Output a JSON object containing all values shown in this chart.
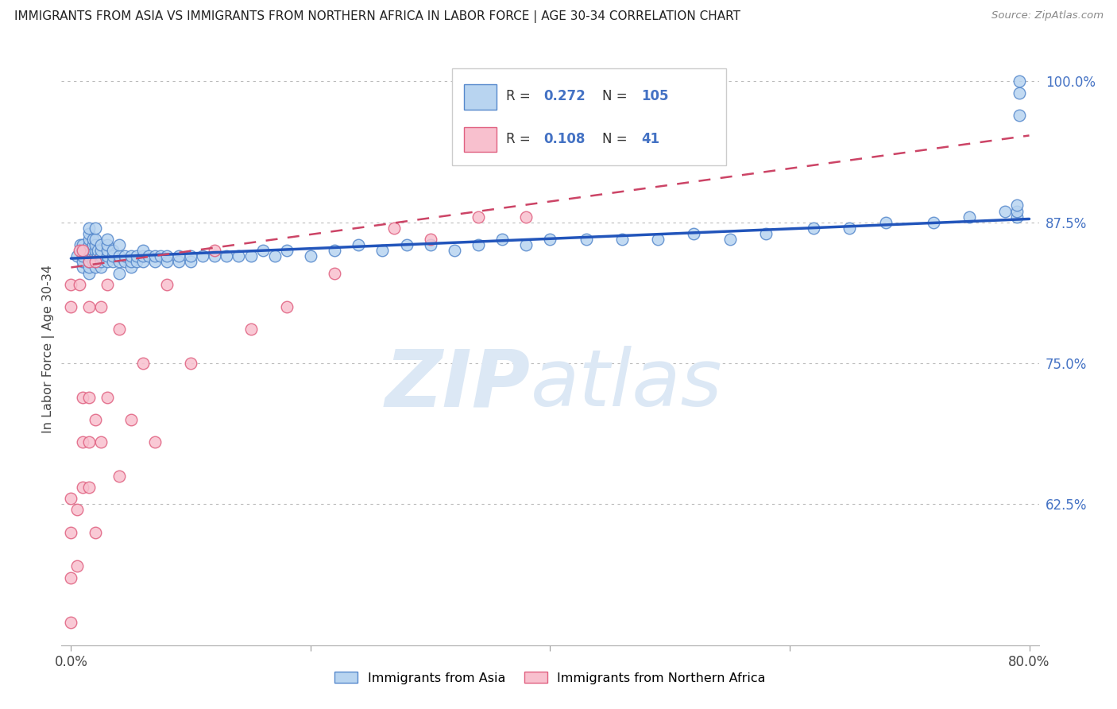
{
  "title": "IMMIGRANTS FROM ASIA VS IMMIGRANTS FROM NORTHERN AFRICA IN LABOR FORCE | AGE 30-34 CORRELATION CHART",
  "source": "Source: ZipAtlas.com",
  "ylabel": "In Labor Force | Age 30-34",
  "legend_label_asia": "Immigrants from Asia",
  "legend_label_africa": "Immigrants from Northern Africa",
  "R_asia": 0.272,
  "N_asia": 105,
  "R_africa": 0.108,
  "N_africa": 41,
  "xlim": [
    -0.008,
    0.808
  ],
  "ylim": [
    0.5,
    1.025
  ],
  "yticks": [
    0.625,
    0.75,
    0.875,
    1.0
  ],
  "ytick_labels": [
    "62.5%",
    "75.0%",
    "87.5%",
    "100.0%"
  ],
  "xticks": [
    0.0,
    0.2,
    0.4,
    0.6,
    0.8
  ],
  "xtick_labels": [
    "0.0%",
    "",
    "",
    "",
    "80.0%"
  ],
  "color_asia_fill": "#b8d4f0",
  "color_asia_edge": "#5588cc",
  "color_africa_fill": "#f8c0ce",
  "color_africa_edge": "#e06080",
  "color_trend_asia": "#2255bb",
  "color_trend_africa": "#cc4466",
  "watermark_color": "#dce8f5",
  "asia_x": [
    0.005,
    0.008,
    0.01,
    0.01,
    0.01,
    0.01,
    0.01,
    0.015,
    0.015,
    0.015,
    0.015,
    0.015,
    0.015,
    0.015,
    0.015,
    0.015,
    0.018,
    0.018,
    0.018,
    0.018,
    0.018,
    0.02,
    0.02,
    0.02,
    0.02,
    0.02,
    0.02,
    0.02,
    0.022,
    0.022,
    0.022,
    0.025,
    0.025,
    0.025,
    0.025,
    0.025,
    0.03,
    0.03,
    0.03,
    0.03,
    0.03,
    0.035,
    0.035,
    0.035,
    0.04,
    0.04,
    0.04,
    0.04,
    0.045,
    0.045,
    0.05,
    0.05,
    0.05,
    0.055,
    0.055,
    0.06,
    0.06,
    0.06,
    0.065,
    0.07,
    0.07,
    0.075,
    0.08,
    0.08,
    0.09,
    0.09,
    0.1,
    0.1,
    0.11,
    0.12,
    0.13,
    0.14,
    0.15,
    0.16,
    0.17,
    0.18,
    0.2,
    0.22,
    0.24,
    0.26,
    0.28,
    0.3,
    0.32,
    0.34,
    0.36,
    0.38,
    0.4,
    0.43,
    0.46,
    0.49,
    0.52,
    0.55,
    0.58,
    0.62,
    0.65,
    0.68,
    0.72,
    0.75,
    0.78,
    0.79,
    0.79,
    0.79,
    0.792,
    0.792,
    0.792
  ],
  "asia_y": [
    0.845,
    0.855,
    0.835,
    0.84,
    0.845,
    0.85,
    0.855,
    0.83,
    0.835,
    0.84,
    0.845,
    0.85,
    0.855,
    0.86,
    0.865,
    0.87,
    0.84,
    0.845,
    0.85,
    0.855,
    0.86,
    0.835,
    0.84,
    0.845,
    0.85,
    0.855,
    0.86,
    0.87,
    0.84,
    0.845,
    0.85,
    0.835,
    0.84,
    0.845,
    0.85,
    0.855,
    0.84,
    0.845,
    0.85,
    0.855,
    0.86,
    0.84,
    0.845,
    0.85,
    0.83,
    0.84,
    0.845,
    0.855,
    0.84,
    0.845,
    0.835,
    0.84,
    0.845,
    0.84,
    0.845,
    0.84,
    0.845,
    0.85,
    0.845,
    0.84,
    0.845,
    0.845,
    0.84,
    0.845,
    0.84,
    0.845,
    0.84,
    0.845,
    0.845,
    0.845,
    0.845,
    0.845,
    0.845,
    0.85,
    0.845,
    0.85,
    0.845,
    0.85,
    0.855,
    0.85,
    0.855,
    0.855,
    0.85,
    0.855,
    0.86,
    0.855,
    0.86,
    0.86,
    0.86,
    0.86,
    0.865,
    0.86,
    0.865,
    0.87,
    0.87,
    0.875,
    0.875,
    0.88,
    0.885,
    0.88,
    0.885,
    0.89,
    0.99,
    1.0,
    0.97
  ],
  "africa_x": [
    0.0,
    0.0,
    0.0,
    0.0,
    0.0,
    0.0,
    0.005,
    0.005,
    0.007,
    0.007,
    0.01,
    0.01,
    0.01,
    0.01,
    0.015,
    0.015,
    0.015,
    0.015,
    0.015,
    0.02,
    0.02,
    0.02,
    0.025,
    0.025,
    0.03,
    0.03,
    0.04,
    0.04,
    0.05,
    0.06,
    0.07,
    0.08,
    0.1,
    0.12,
    0.15,
    0.18,
    0.22,
    0.27,
    0.3,
    0.34,
    0.38
  ],
  "africa_y": [
    0.52,
    0.56,
    0.6,
    0.63,
    0.8,
    0.82,
    0.57,
    0.62,
    0.82,
    0.85,
    0.64,
    0.68,
    0.72,
    0.85,
    0.64,
    0.68,
    0.72,
    0.8,
    0.84,
    0.6,
    0.7,
    0.84,
    0.68,
    0.8,
    0.72,
    0.82,
    0.65,
    0.78,
    0.7,
    0.75,
    0.68,
    0.82,
    0.75,
    0.85,
    0.78,
    0.8,
    0.83,
    0.87,
    0.86,
    0.88,
    0.88
  ],
  "trend_asia_x0": 0.0,
  "trend_asia_x1": 0.8,
  "trend_asia_y0": 0.843,
  "trend_asia_y1": 0.878,
  "trend_africa_x0": 0.0,
  "trend_africa_x1": 0.8,
  "trend_africa_y0": 0.835,
  "trend_africa_y1": 0.952
}
